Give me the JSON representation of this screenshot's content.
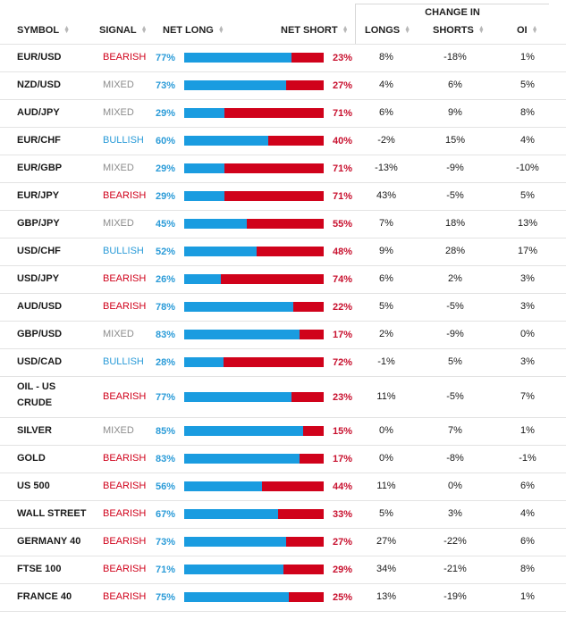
{
  "header": {
    "change_in": "CHANGE IN",
    "symbol": "SYMBOL",
    "signal": "SIGNAL",
    "net_long": "NET LONG",
    "net_short": "NET SHORT",
    "longs": "LONGS",
    "shorts": "SHORTS",
    "oi": "OI"
  },
  "colors": {
    "long_bar": "#1a9ce0",
    "short_bar": "#d0021b",
    "bullish": "#2a9bd8",
    "bearish": "#d0021b",
    "mixed": "#8c8c8c"
  },
  "rows": [
    {
      "symbol": "EUR/USD",
      "signal": "BEARISH",
      "net_long": "77%",
      "net_short": "23%",
      "long_frac": 0.77,
      "longs": "8%",
      "shorts": "-18%",
      "oi": "1%"
    },
    {
      "symbol": "NZD/USD",
      "signal": "MIXED",
      "net_long": "73%",
      "net_short": "27%",
      "long_frac": 0.73,
      "longs": "4%",
      "shorts": "6%",
      "oi": "5%"
    },
    {
      "symbol": "AUD/JPY",
      "signal": "MIXED",
      "net_long": "29%",
      "net_short": "71%",
      "long_frac": 0.29,
      "longs": "6%",
      "shorts": "9%",
      "oi": "8%"
    },
    {
      "symbol": "EUR/CHF",
      "signal": "BULLISH",
      "net_long": "60%",
      "net_short": "40%",
      "long_frac": 0.6,
      "longs": "-2%",
      "shorts": "15%",
      "oi": "4%"
    },
    {
      "symbol": "EUR/GBP",
      "signal": "MIXED",
      "net_long": "29%",
      "net_short": "71%",
      "long_frac": 0.29,
      "longs": "-13%",
      "shorts": "-9%",
      "oi": "-10%"
    },
    {
      "symbol": "EUR/JPY",
      "signal": "BEARISH",
      "net_long": "29%",
      "net_short": "71%",
      "long_frac": 0.29,
      "longs": "43%",
      "shorts": "-5%",
      "oi": "5%"
    },
    {
      "symbol": "GBP/JPY",
      "signal": "MIXED",
      "net_long": "45%",
      "net_short": "55%",
      "long_frac": 0.45,
      "longs": "7%",
      "shorts": "18%",
      "oi": "13%"
    },
    {
      "symbol": "USD/CHF",
      "signal": "BULLISH",
      "net_long": "52%",
      "net_short": "48%",
      "long_frac": 0.52,
      "longs": "9%",
      "shorts": "28%",
      "oi": "17%"
    },
    {
      "symbol": "USD/JPY",
      "signal": "BEARISH",
      "net_long": "26%",
      "net_short": "74%",
      "long_frac": 0.26,
      "longs": "6%",
      "shorts": "2%",
      "oi": "3%"
    },
    {
      "symbol": "AUD/USD",
      "signal": "BEARISH",
      "net_long": "78%",
      "net_short": "22%",
      "long_frac": 0.78,
      "longs": "5%",
      "shorts": "-5%",
      "oi": "3%"
    },
    {
      "symbol": "GBP/USD",
      "signal": "MIXED",
      "net_long": "83%",
      "net_short": "17%",
      "long_frac": 0.83,
      "longs": "2%",
      "shorts": "-9%",
      "oi": "0%"
    },
    {
      "symbol": "USD/CAD",
      "signal": "BULLISH",
      "net_long": "28%",
      "net_short": "72%",
      "long_frac": 0.28,
      "longs": "-1%",
      "shorts": "5%",
      "oi": "3%"
    },
    {
      "symbol": "OIL - US CRUDE",
      "signal": "BEARISH",
      "net_long": "77%",
      "net_short": "23%",
      "long_frac": 0.77,
      "longs": "11%",
      "shorts": "-5%",
      "oi": "7%"
    },
    {
      "symbol": "SILVER",
      "signal": "MIXED",
      "net_long": "85%",
      "net_short": "15%",
      "long_frac": 0.85,
      "longs": "0%",
      "shorts": "7%",
      "oi": "1%"
    },
    {
      "symbol": "GOLD",
      "signal": "BEARISH",
      "net_long": "83%",
      "net_short": "17%",
      "long_frac": 0.83,
      "longs": "0%",
      "shorts": "-8%",
      "oi": "-1%"
    },
    {
      "symbol": "US 500",
      "signal": "BEARISH",
      "net_long": "56%",
      "net_short": "44%",
      "long_frac": 0.56,
      "longs": "11%",
      "shorts": "0%",
      "oi": "6%"
    },
    {
      "symbol": "WALL STREET",
      "signal": "BEARISH",
      "net_long": "67%",
      "net_short": "33%",
      "long_frac": 0.67,
      "longs": "5%",
      "shorts": "3%",
      "oi": "4%"
    },
    {
      "symbol": "GERMANY 40",
      "signal": "BEARISH",
      "net_long": "73%",
      "net_short": "27%",
      "long_frac": 0.73,
      "longs": "27%",
      "shorts": "-22%",
      "oi": "6%"
    },
    {
      "symbol": "FTSE 100",
      "signal": "BEARISH",
      "net_long": "71%",
      "net_short": "29%",
      "long_frac": 0.71,
      "longs": "34%",
      "shorts": "-21%",
      "oi": "8%"
    },
    {
      "symbol": "FRANCE 40",
      "signal": "BEARISH",
      "net_long": "75%",
      "net_short": "25%",
      "long_frac": 0.75,
      "longs": "13%",
      "shorts": "-19%",
      "oi": "1%"
    }
  ]
}
